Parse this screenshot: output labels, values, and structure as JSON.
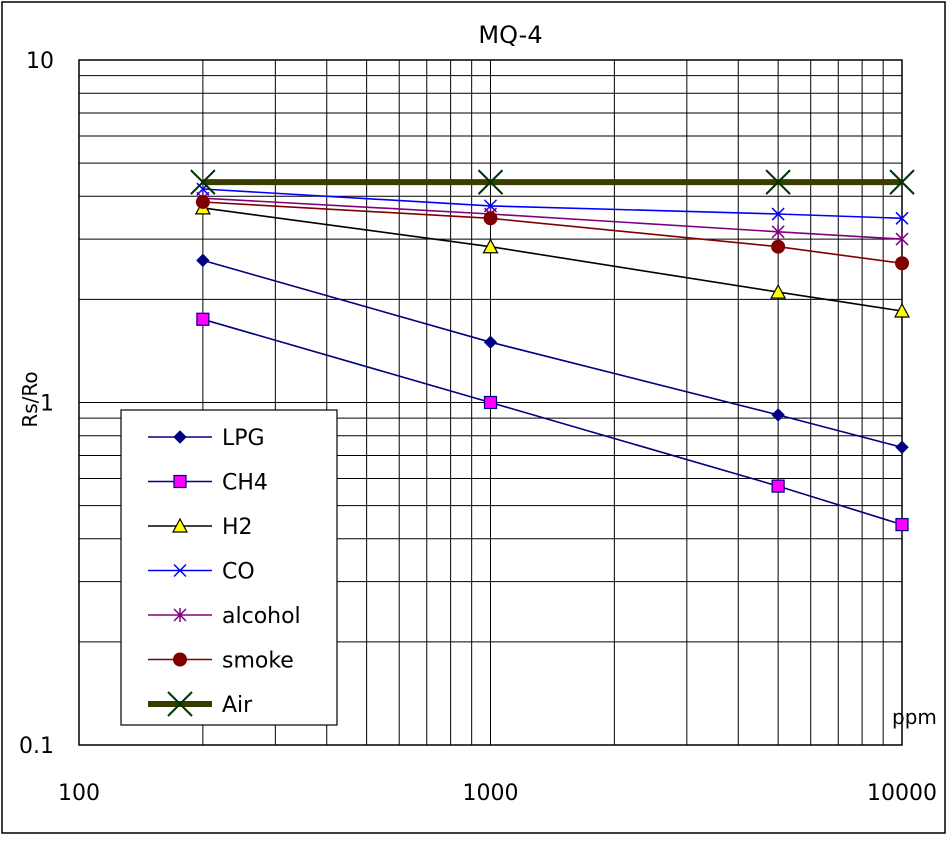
{
  "chart_data": {
    "type": "line",
    "title": "MQ-4",
    "xlabel": "ppm",
    "ylabel": "Rs/Ro",
    "xscale": "log",
    "yscale": "log",
    "xlim": [
      100,
      10000
    ],
    "ylim": [
      0.1,
      10
    ],
    "x_tick_labels": [
      "100",
      "1000",
      "10000"
    ],
    "y_tick_labels": [
      "0.1",
      "1",
      "10"
    ],
    "grid": true,
    "legend_position": "lower-left",
    "series": [
      {
        "name": "LPG",
        "color": "#000080",
        "marker": "diamond",
        "marker_fill": "#000080",
        "points": [
          [
            200,
            2.6
          ],
          [
            1000,
            1.5
          ],
          [
            5000,
            0.92
          ],
          [
            10000,
            0.74
          ]
        ]
      },
      {
        "name": "CH4",
        "color": "#000080",
        "marker": "square",
        "marker_fill": "#ff00ff",
        "points": [
          [
            200,
            1.75
          ],
          [
            1000,
            1.0
          ],
          [
            5000,
            0.57
          ],
          [
            10000,
            0.44
          ]
        ]
      },
      {
        "name": "H2",
        "color": "#000000",
        "marker": "triangle",
        "marker_fill": "#ffff00",
        "points": [
          [
            200,
            3.7
          ],
          [
            1000,
            2.85
          ],
          [
            5000,
            2.1
          ],
          [
            10000,
            1.85
          ]
        ]
      },
      {
        "name": "CO",
        "color": "#0000ff",
        "marker": "x",
        "marker_fill": "#0000ff",
        "points": [
          [
            200,
            4.2
          ],
          [
            1000,
            3.75
          ],
          [
            5000,
            3.55
          ],
          [
            10000,
            3.45
          ]
        ]
      },
      {
        "name": "alcohol",
        "color": "#800080",
        "marker": "asterisk",
        "marker_fill": "#800080",
        "points": [
          [
            200,
            3.95
          ],
          [
            1000,
            3.55
          ],
          [
            5000,
            3.15
          ],
          [
            10000,
            3.0
          ]
        ]
      },
      {
        "name": "smoke",
        "color": "#800000",
        "marker": "circle",
        "marker_fill": "#800000",
        "points": [
          [
            200,
            3.85
          ],
          [
            1000,
            3.45
          ],
          [
            5000,
            2.85
          ],
          [
            10000,
            2.55
          ]
        ]
      },
      {
        "name": "Air",
        "color": "#3a3d00",
        "marker": "bigx",
        "marker_fill": "#003300",
        "width": 6,
        "points": [
          [
            200,
            4.4
          ],
          [
            1000,
            4.4
          ],
          [
            5000,
            4.4
          ],
          [
            10000,
            4.4
          ]
        ]
      }
    ]
  }
}
